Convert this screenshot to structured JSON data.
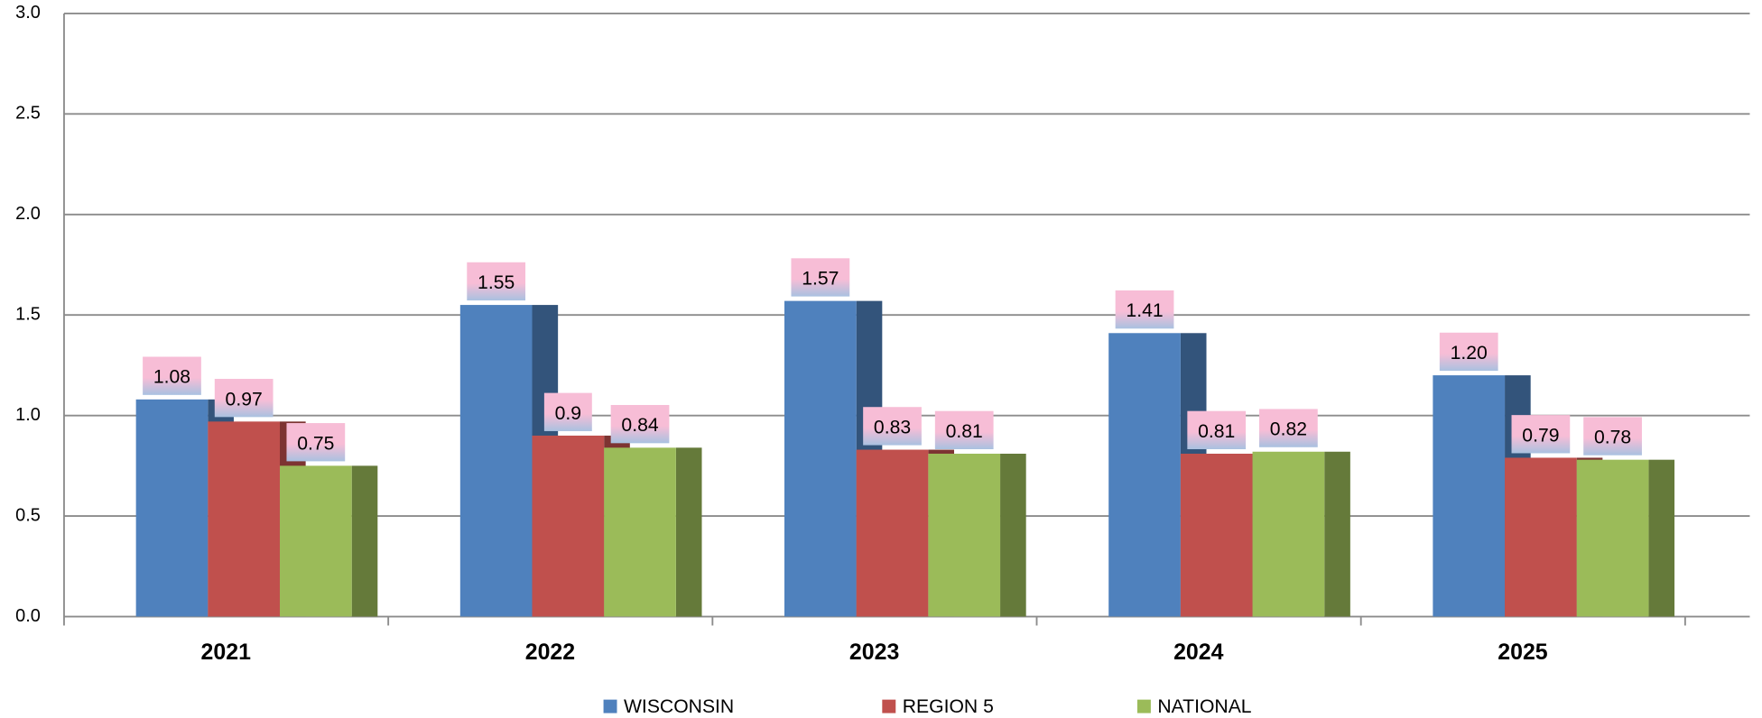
{
  "chart_data": {
    "type": "bar",
    "categories": [
      "2021",
      "2022",
      "2023",
      "2024",
      "2025"
    ],
    "series": [
      {
        "name": "WISCONSIN",
        "color": "#4f81bd",
        "values": [
          1.08,
          1.55,
          1.57,
          1.41,
          1.2
        ],
        "value_labels": [
          "1.08",
          "1.55",
          "1.57",
          "1.41",
          "1.20"
        ]
      },
      {
        "name": "REGION 5",
        "color": "#c0504d",
        "values": [
          0.97,
          0.9,
          0.83,
          0.81,
          0.79
        ],
        "value_labels": [
          "0.97",
          "0.9",
          "0.83",
          "0.81",
          "0.79"
        ]
      },
      {
        "name": "NATIONAL",
        "color": "#9bbb59",
        "values": [
          0.75,
          0.84,
          0.81,
          0.82,
          0.78
        ],
        "value_labels": [
          "0.75",
          "0.84",
          "0.81",
          "0.82",
          "0.78"
        ]
      }
    ],
    "ylim": [
      0,
      3
    ],
    "yticks": [
      {
        "value": 0,
        "label": "0.0"
      },
      0.5,
      {
        "value": 1,
        "label": "1.0"
      },
      1.5,
      {
        "value": 2,
        "label": "2.0"
      },
      2.5,
      {
        "value": 3,
        "label": "3.0"
      }
    ],
    "grid": true,
    "legend": "bottom"
  }
}
